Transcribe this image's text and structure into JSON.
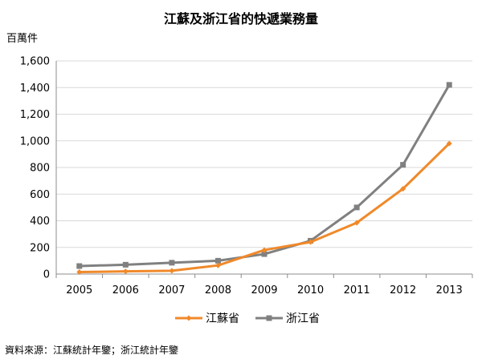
{
  "chart_data": {
    "type": "line",
    "title": "江蘇及浙江省的快遞業務量",
    "ylabel": "百萬件",
    "xlabel": "",
    "categories": [
      "2005",
      "2006",
      "2007",
      "2008",
      "2009",
      "2010",
      "2011",
      "2012",
      "2013"
    ],
    "ylim": [
      0,
      1600
    ],
    "yticks": [
      0,
      200,
      400,
      600,
      800,
      1000,
      1200,
      1400,
      1600
    ],
    "ytick_labels": [
      "0",
      "200",
      "400",
      "600",
      "800",
      "1,000",
      "1,200",
      "1,400",
      "1,600"
    ],
    "grid": true,
    "legend_position": "bottom",
    "series": [
      {
        "name": "江蘇省",
        "color": "#F0892A",
        "marker": "diamond",
        "values": [
          15,
          20,
          25,
          65,
          180,
          240,
          385,
          640,
          980
        ]
      },
      {
        "name": "浙江省",
        "color": "#808080",
        "marker": "square",
        "values": [
          60,
          70,
          85,
          100,
          150,
          250,
          500,
          820,
          1420
        ]
      }
    ],
    "source": "資料來源：江蘇統計年鑒；浙江統計年鑒"
  }
}
